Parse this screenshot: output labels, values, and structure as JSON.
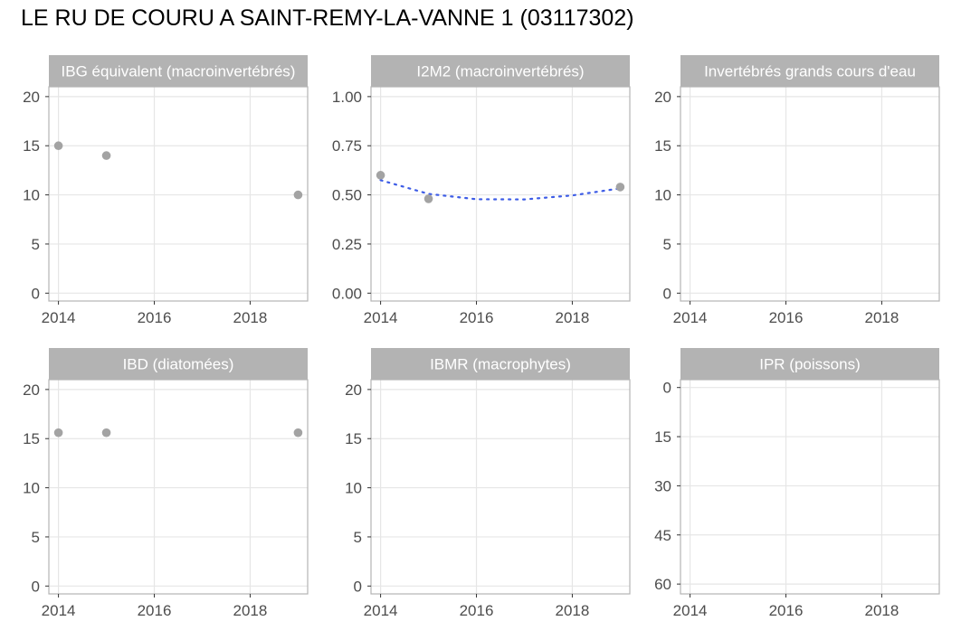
{
  "title": "LE RU DE COURU A SAINT-REMY-LA-VANNE 1 (03117302)",
  "colors": {
    "strip": "#b3b3b3",
    "strip_text": "#ffffff",
    "panel_border": "#b3b3b3",
    "grid": "#e6e6e6",
    "point": "#a3a3a3",
    "trend": "#3d5ce6",
    "tick_text": "#4d4d4d"
  },
  "chart_data": [
    {
      "type": "scatter",
      "title": "IBG équivalent (macroinvertébrés)",
      "xlim": [
        2013.8,
        2019.2
      ],
      "ylim": [
        -0.8,
        21
      ],
      "x_ticks": [
        2014,
        2016,
        2018
      ],
      "y_ticks": [
        0,
        5,
        10,
        15,
        20
      ],
      "y_tick_labels": [
        "0",
        "5",
        "10",
        "15",
        "20"
      ],
      "y_reversed": false,
      "grid": true,
      "points": [
        {
          "x": 2014,
          "y": 15
        },
        {
          "x": 2015,
          "y": 14
        },
        {
          "x": 2019,
          "y": 10
        }
      ]
    },
    {
      "type": "scatter",
      "title": "I2M2 (macroinvertébrés)",
      "xlim": [
        2013.8,
        2019.2
      ],
      "ylim": [
        -0.04,
        1.05
      ],
      "x_ticks": [
        2014,
        2016,
        2018
      ],
      "y_ticks": [
        0,
        0.25,
        0.5,
        0.75,
        1
      ],
      "y_tick_labels": [
        "0.00",
        "0.25",
        "0.50",
        "0.75",
        "1.00"
      ],
      "y_reversed": false,
      "grid": true,
      "points": [
        {
          "x": 2014,
          "y": 0.6
        },
        {
          "x": 2015,
          "y": 0.48
        },
        {
          "x": 2019,
          "y": 0.54
        }
      ],
      "trend": {
        "style": "dotted",
        "x": [
          2014,
          2015,
          2016,
          2017,
          2018,
          2019
        ],
        "y": [
          0.575,
          0.505,
          0.478,
          0.477,
          0.497,
          0.533
        ]
      }
    },
    {
      "type": "scatter",
      "title": "Invertébrés grands cours d'eau",
      "xlim": [
        2013.8,
        2019.2
      ],
      "ylim": [
        -0.8,
        21
      ],
      "x_ticks": [
        2014,
        2016,
        2018
      ],
      "y_ticks": [
        0,
        5,
        10,
        15,
        20
      ],
      "y_tick_labels": [
        "0",
        "5",
        "10",
        "15",
        "20"
      ],
      "y_reversed": false,
      "grid": true,
      "points": []
    },
    {
      "type": "scatter",
      "title": "IBD (diatomées)",
      "xlim": [
        2013.8,
        2019.2
      ],
      "ylim": [
        -0.8,
        21
      ],
      "x_ticks": [
        2014,
        2016,
        2018
      ],
      "y_ticks": [
        0,
        5,
        10,
        15,
        20
      ],
      "y_tick_labels": [
        "0",
        "5",
        "10",
        "15",
        "20"
      ],
      "y_reversed": false,
      "grid": true,
      "points": [
        {
          "x": 2014,
          "y": 15.6
        },
        {
          "x": 2015,
          "y": 15.6
        },
        {
          "x": 2019,
          "y": 15.6
        }
      ]
    },
    {
      "type": "scatter",
      "title": "IBMR (macrophytes)",
      "xlim": [
        2013.8,
        2019.2
      ],
      "ylim": [
        -0.8,
        21
      ],
      "x_ticks": [
        2014,
        2016,
        2018
      ],
      "y_ticks": [
        0,
        5,
        10,
        15,
        20
      ],
      "y_tick_labels": [
        "0",
        "5",
        "10",
        "15",
        "20"
      ],
      "y_reversed": false,
      "grid": true,
      "points": []
    },
    {
      "type": "scatter",
      "title": "IPR (poissons)",
      "xlim": [
        2013.8,
        2019.2
      ],
      "ylim": [
        -2.4,
        63
      ],
      "x_ticks": [
        2014,
        2016,
        2018
      ],
      "y_ticks": [
        0,
        15,
        30,
        45,
        60
      ],
      "y_tick_labels": [
        "0",
        "15",
        "30",
        "45",
        "60"
      ],
      "y_reversed": true,
      "grid": true,
      "points": []
    }
  ]
}
